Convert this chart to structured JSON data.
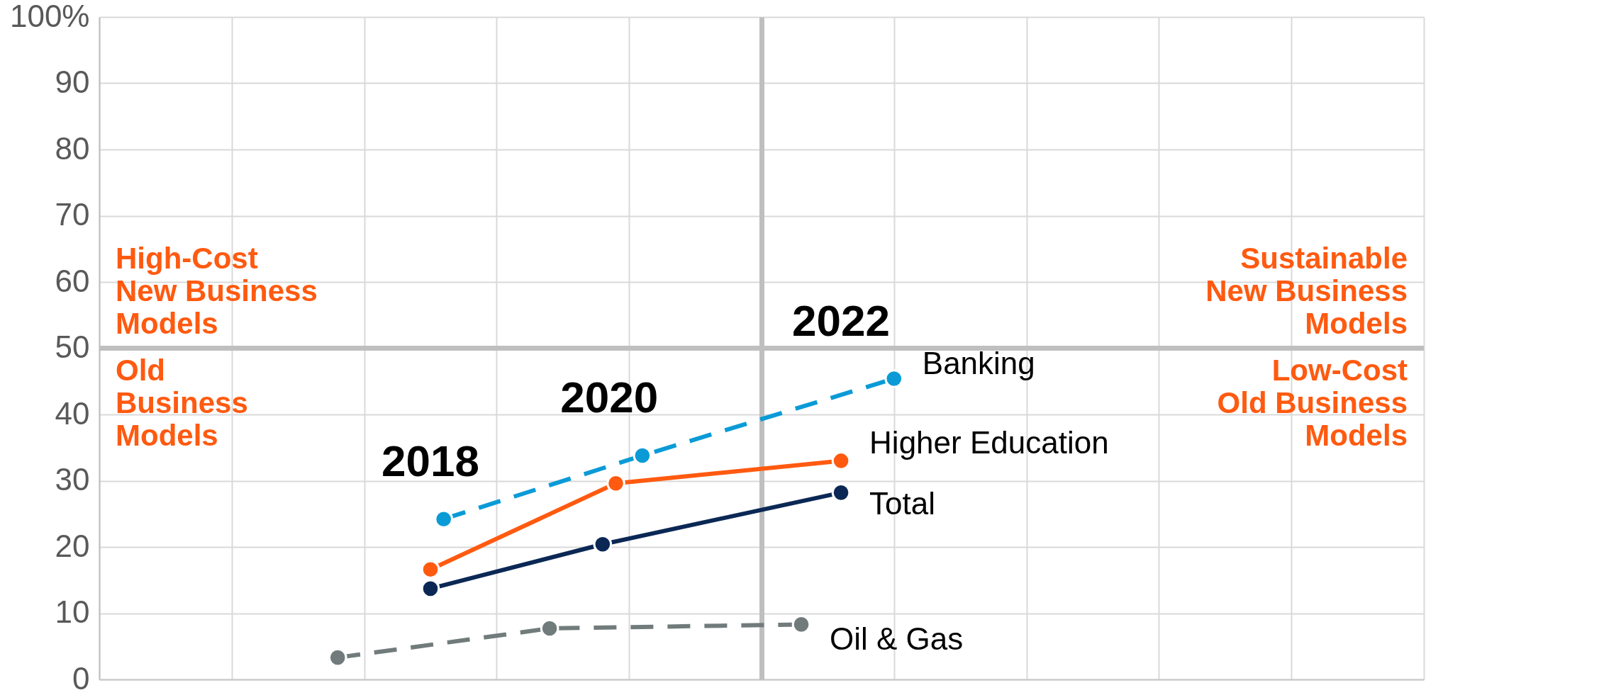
{
  "chart_data": {
    "type": "line",
    "categories": [
      null,
      null,
      null,
      null,
      null,
      null,
      null,
      null,
      null,
      null,
      null,
      null,
      null,
      null,
      null,
      null,
      null,
      null,
      null,
      null,
      null,
      null,
      null,
      null,
      null,
      null,
      null,
      null,
      null,
      null,
      null,
      null,
      null,
      null,
      null,
      null,
      null,
      null,
      null,
      null,
      null,
      null,
      null,
      null,
      null,
      null,
      null,
      null,
      null,
      null,
      null,
      null,
      null,
      null,
      null,
      null,
      null,
      null,
      null,
      null,
      null,
      null,
      null,
      null,
      null,
      null,
      null,
      null,
      null,
      null,
      null,
      null,
      null,
      null,
      null,
      null,
      null,
      null,
      null,
      null,
      null,
      null,
      null,
      null,
      null,
      null,
      null,
      null,
      null,
      null,
      null,
      null,
      null,
      null,
      null,
      null,
      null,
      null,
      null,
      null,
      null
    ],
    "ylim": [
      0,
      100
    ],
    "yticks": [
      0,
      10,
      20,
      30,
      40,
      50,
      60,
      70,
      80,
      90,
      {
        "value": 100,
        "label": "100%"
      }
    ],
    "tick_labels": "y",
    "grid": true,
    "marker": "circle",
    "series": [
      {
        "name": "Banking",
        "color": "#0a9bd7",
        "line_style": "dashed",
        "values": [
          null,
          null,
          null,
          null,
          null,
          null,
          null,
          null,
          null,
          null,
          null,
          null,
          null,
          null,
          null,
          null,
          null,
          null,
          null,
          null,
          null,
          null,
          null,
          null,
          null,
          null,
          24.2,
          null,
          null,
          null,
          null,
          null,
          null,
          null,
          null,
          null,
          null,
          null,
          null,
          null,
          null,
          33.8,
          null,
          null,
          null,
          null,
          null,
          null,
          null,
          null,
          null,
          null,
          null,
          null,
          null,
          null,
          null,
          null,
          null,
          null,
          45.4,
          null,
          null,
          null,
          null,
          null,
          null,
          null,
          null,
          null,
          null,
          null,
          null,
          null,
          null,
          null,
          null,
          null,
          null,
          null,
          null,
          null,
          null,
          null,
          null,
          null,
          null,
          null,
          null,
          null,
          null,
          null,
          null,
          null,
          null,
          null,
          null,
          null,
          null,
          null,
          null
        ]
      },
      {
        "name": "Higher Education",
        "color": "#ff5a10",
        "line_style": "solid",
        "values": [
          null,
          null,
          null,
          null,
          null,
          null,
          null,
          null,
          null,
          null,
          null,
          null,
          null,
          null,
          null,
          null,
          null,
          null,
          null,
          null,
          null,
          null,
          null,
          null,
          null,
          16.6,
          null,
          null,
          null,
          null,
          null,
          null,
          null,
          null,
          null,
          null,
          null,
          null,
          null,
          29.6,
          null,
          null,
          null,
          null,
          null,
          null,
          null,
          null,
          null,
          null,
          null,
          null,
          null,
          null,
          null,
          null,
          33,
          null,
          null,
          null,
          null,
          null,
          null,
          null,
          null,
          null,
          null,
          null,
          null,
          null,
          null,
          null,
          null,
          null,
          null,
          null,
          null,
          null,
          null,
          null,
          null,
          null,
          null,
          null,
          null,
          null,
          null,
          null,
          null,
          null,
          null,
          null,
          null,
          null,
          null,
          null,
          null,
          null,
          null,
          null,
          null
        ]
      },
      {
        "name": "Total",
        "color": "#0b2855",
        "line_style": "solid",
        "values": [
          null,
          null,
          null,
          null,
          null,
          null,
          null,
          null,
          null,
          null,
          null,
          null,
          null,
          null,
          null,
          null,
          null,
          null,
          null,
          null,
          null,
          null,
          null,
          null,
          null,
          13.7,
          null,
          null,
          null,
          null,
          null,
          null,
          null,
          null,
          null,
          null,
          null,
          null,
          20.4,
          null,
          null,
          null,
          null,
          null,
          null,
          null,
          null,
          null,
          null,
          null,
          null,
          null,
          null,
          null,
          null,
          null,
          28.2,
          null,
          null,
          null,
          null,
          null,
          null,
          null,
          null,
          null,
          null,
          null,
          null,
          null,
          null,
          null,
          null,
          null,
          null,
          null,
          null,
          null,
          null,
          null,
          null,
          null,
          null,
          null,
          null,
          null,
          null,
          null,
          null,
          null,
          null,
          null,
          null,
          null,
          null,
          null,
          null,
          null,
          null,
          null,
          null
        ]
      },
      {
        "name": "Oil & Gas",
        "color": "#717b7b",
        "line_style": "dashed",
        "values": [
          null,
          null,
          null,
          null,
          null,
          null,
          null,
          null,
          null,
          null,
          null,
          null,
          null,
          null,
          null,
          null,
          null,
          null,
          3.3,
          null,
          null,
          null,
          null,
          null,
          null,
          null,
          null,
          null,
          null,
          null,
          null,
          null,
          null,
          null,
          7.7,
          null,
          null,
          null,
          null,
          null,
          null,
          null,
          null,
          null,
          null,
          null,
          null,
          null,
          null,
          null,
          null,
          null,
          null,
          8.3,
          null,
          null,
          null,
          null,
          null,
          null,
          null,
          null,
          null,
          null,
          null,
          null,
          null,
          null,
          null,
          null,
          null,
          null,
          null,
          null,
          null,
          null,
          null,
          null,
          null,
          null,
          null,
          null,
          null,
          null,
          null,
          null,
          null,
          null,
          null,
          null,
          null,
          null,
          null,
          null,
          null,
          null,
          null,
          null,
          null,
          null,
          null
        ]
      }
    ],
    "ref_lines": [
      {
        "axis": "y",
        "value": 50,
        "color": "#bfbfbf"
      }
    ],
    "annotations": [
      "High-Cost\nNew Business\nModels",
      "Sustainable\nNew Business\nModels",
      "Old\nBusiness\nModels",
      "Low-Cost\nOld Business\nModels",
      "2018",
      "2020",
      "2022"
    ]
  }
}
